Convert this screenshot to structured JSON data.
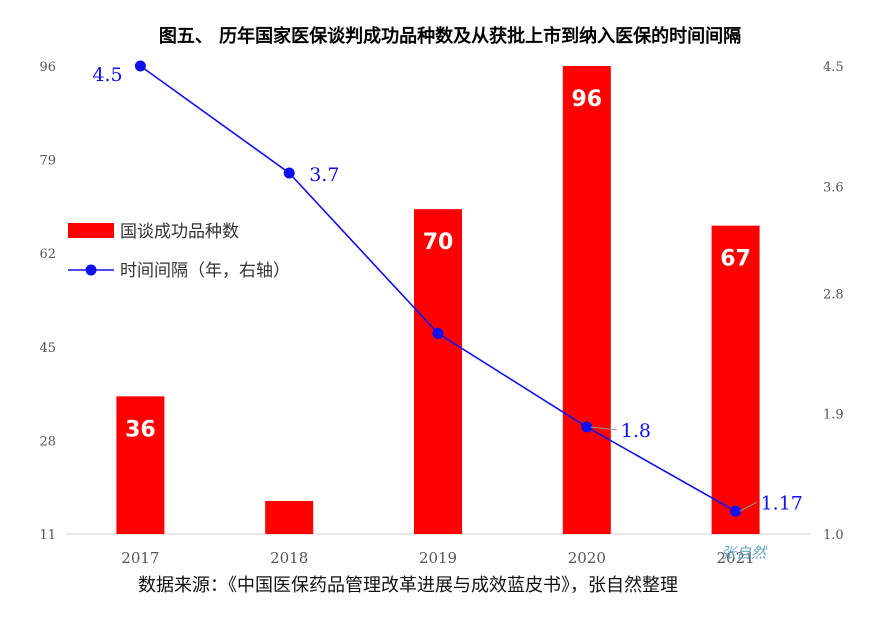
{
  "chart_data": {
    "type": "bar",
    "title": "图五、  历年国家医保谈判成功品种数及从获批上市到纳入医保的时间间隔",
    "categories": [
      "2017",
      "2018",
      "2019",
      "2020",
      "2021"
    ],
    "series": [
      {
        "name": "国谈成功品种数",
        "type": "bar",
        "axis": "left",
        "color": "#ff0000",
        "values": [
          36,
          17,
          70,
          96,
          67
        ],
        "labels": [
          "36",
          "",
          "70",
          "96",
          "67"
        ]
      },
      {
        "name": "时间间隔（年，右轴）",
        "type": "line",
        "axis": "right",
        "color": "#1010ee",
        "values": [
          4.5,
          3.7,
          2.5,
          1.8,
          1.17
        ],
        "labels": [
          "4.5",
          "3.7",
          "",
          "1.8",
          "1.17"
        ]
      }
    ],
    "y_left": {
      "min": 11,
      "max": 96,
      "ticks": [
        "11",
        "28",
        "45",
        "62",
        "79",
        "96"
      ]
    },
    "y_right": {
      "min": 1.0,
      "max": 4.5,
      "ticks": [
        "1.0",
        "1.9",
        "2.8",
        "3.6",
        "4.5"
      ]
    },
    "legend_position": "left"
  },
  "source_note": "数据来源：《中国医保药品管理改革进展与成效蓝皮书》，张自然整理",
  "watermark": "张自然"
}
